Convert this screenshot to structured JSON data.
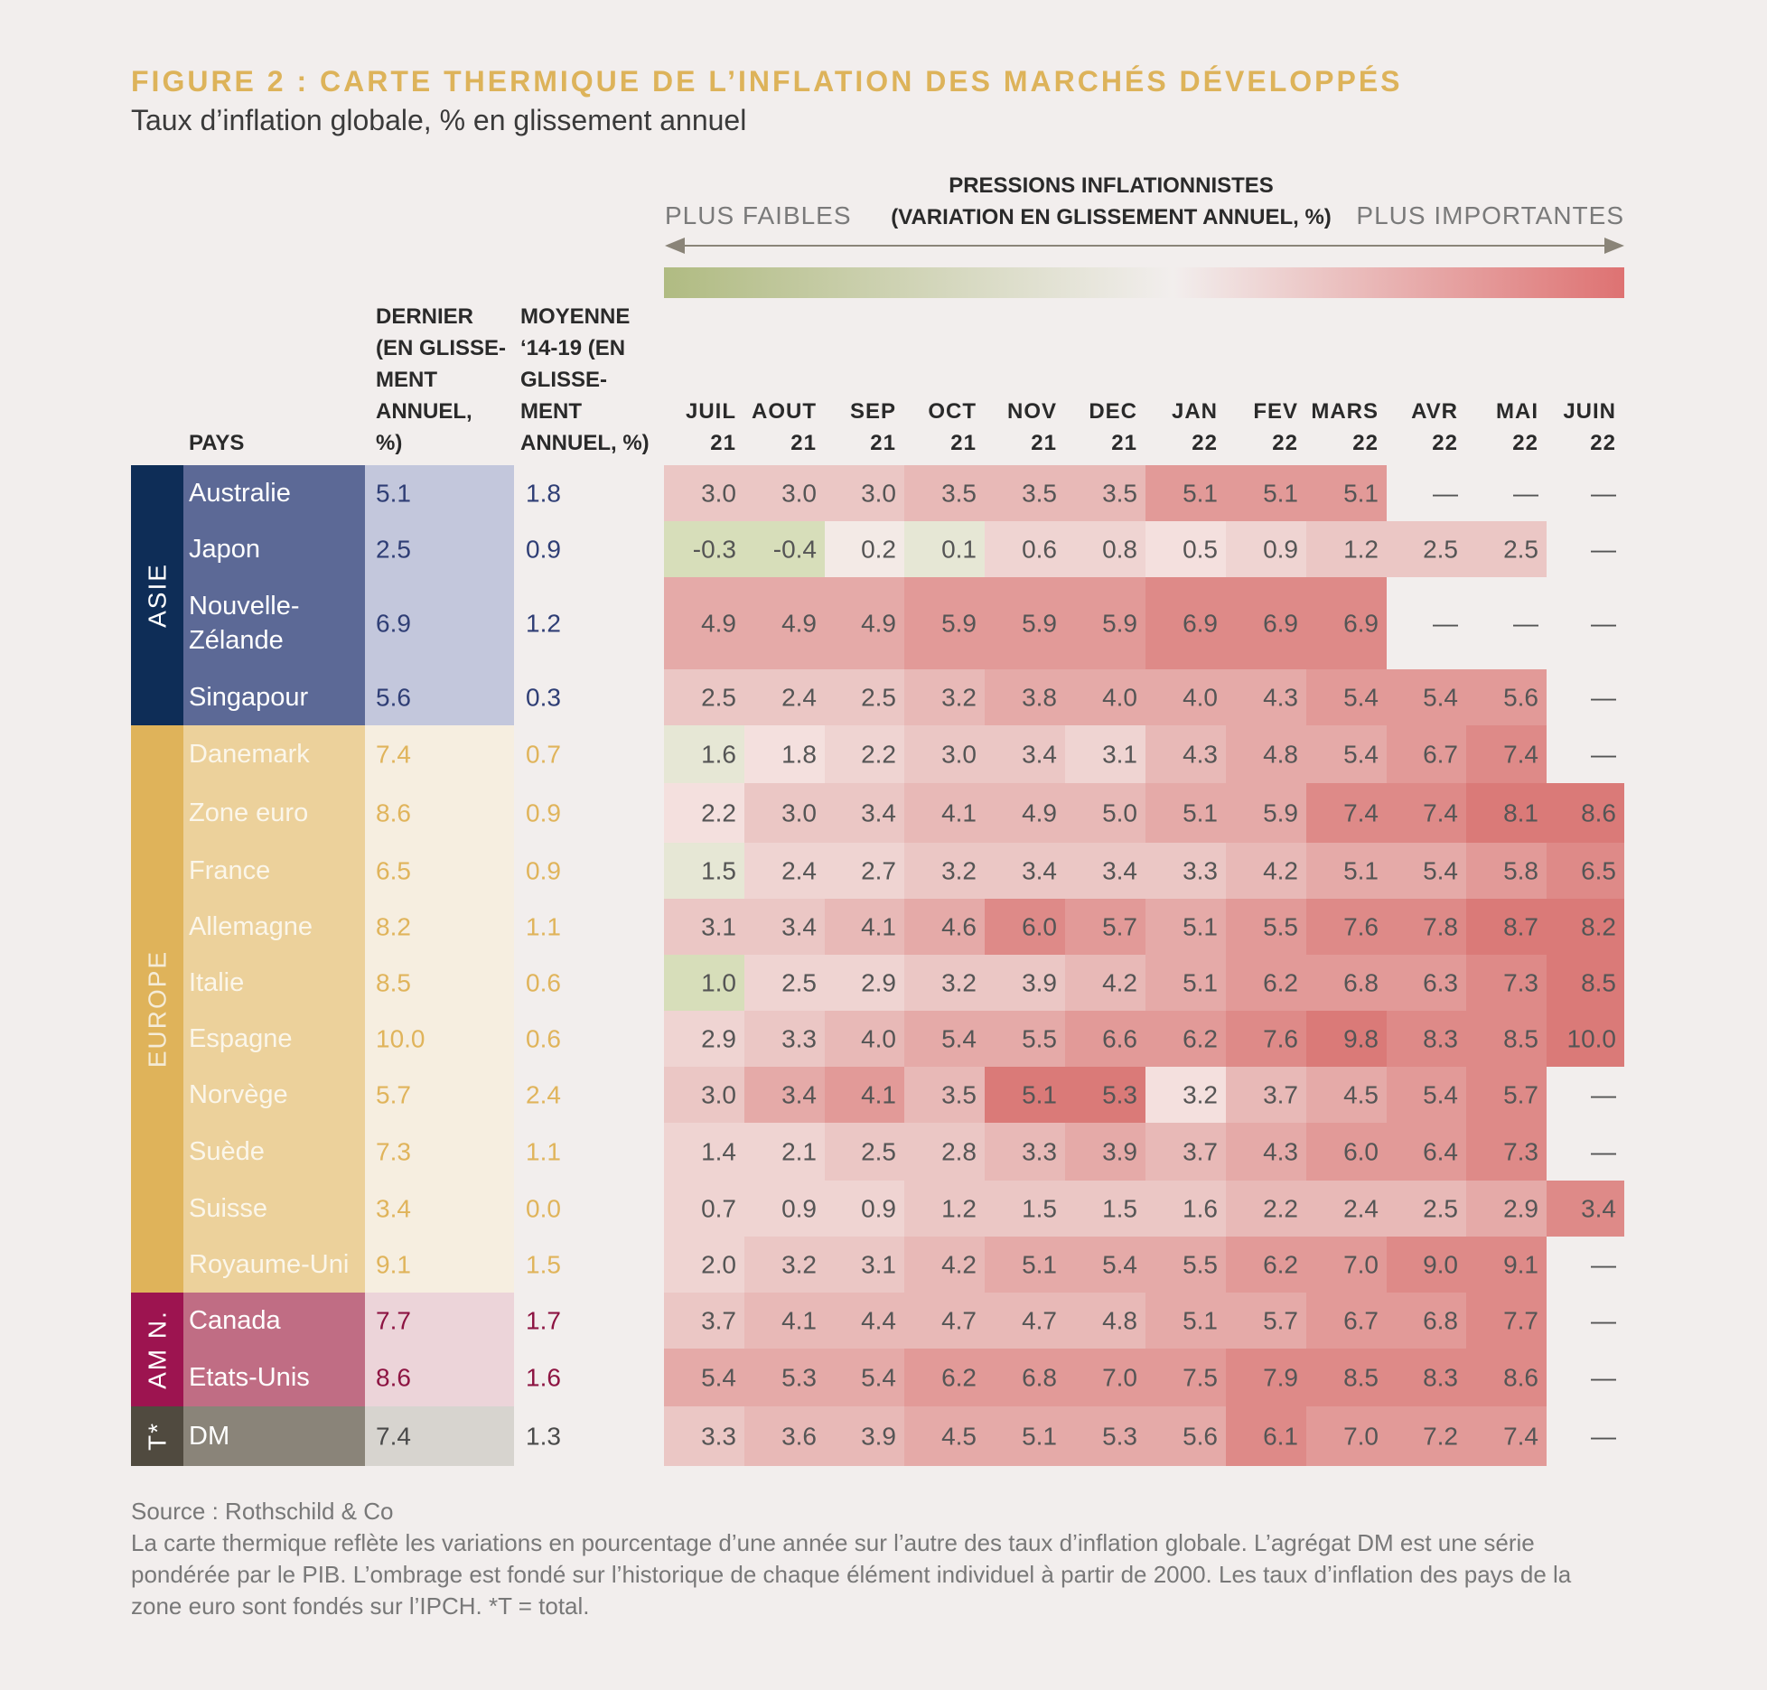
{
  "header": {
    "title": "FIGURE 2 : CARTE THERMIQUE DE L’INFLATION DES MARCHÉS DÉVELOPPÉS",
    "subtitle": "Taux d’inflation globale, % en glissement annuel"
  },
  "legend": {
    "heading_line1": "PRESSIONS INFLATIONNISTES",
    "heading_line2": "(VARIATION EN GLISSEMENT ANNUEL, %)",
    "low_label": "PLUS FAIBLES",
    "high_label": "PLUS IMPORTANTES",
    "gradient_colors": [
      "#b0bb82",
      "#f2eeed",
      "#de7272"
    ]
  },
  "chart_data": {
    "type": "heatmap",
    "column_headers": {
      "country": "PAYS",
      "latest": [
        "DERNIER",
        "(EN GLISSE-",
        "MENT",
        "ANNUEL,",
        "%)"
      ],
      "average": [
        "MOYENNE",
        "‘14-19 (EN",
        "GLISSE-",
        "MENT",
        "ANNUEL, %)"
      ]
    },
    "months": [
      [
        "JUIL",
        "21"
      ],
      [
        "AOUT",
        "21"
      ],
      [
        "SEP",
        "21"
      ],
      [
        "OCT",
        "21"
      ],
      [
        "NOV",
        "21"
      ],
      [
        "DEC",
        "21"
      ],
      [
        "JAN",
        "22"
      ],
      [
        "FEV",
        "22"
      ],
      [
        "MARS",
        "22"
      ],
      [
        "AVR",
        "22"
      ],
      [
        "MAI",
        "22"
      ],
      [
        "JUIN",
        "22"
      ]
    ],
    "groups": [
      {
        "label": "ASIE",
        "color": "#0e2d57",
        "label_color": "#ffffff"
      },
      {
        "label": "EUROPE",
        "color": "#dfb35a",
        "label_color": "#f5ecd8"
      },
      {
        "label": "AM N.",
        "color": "#9d1450",
        "label_color": "#ffffff"
      },
      {
        "label": "T*",
        "color": "#504a3f",
        "label_color": "#ffffff"
      }
    ],
    "group_styles": [
      {
        "name_bg": "#5c6996",
        "name_fg": "#ffffff",
        "val_bg": "#c3c7dc",
        "val_fg": "#2f3e75"
      },
      {
        "name_bg": "#ecd19b",
        "name_fg": "#fbf6ea",
        "val_bg": "#f6eee0",
        "val_fg": "#e0b45b"
      },
      {
        "name_bg": "#c06d84",
        "name_fg": "#ffffff",
        "val_bg": "#ecd4d9",
        "val_fg": "#8d1442"
      },
      {
        "name_bg": "#8a8479",
        "name_fg": "#ffffff",
        "val_bg": "#d7d4cf",
        "val_fg": "#4a4a4a"
      }
    ],
    "dash": "—",
    "rows": [
      {
        "group": 0,
        "name": [
          "Australie"
        ],
        "latest": "5.1",
        "avg": "1.8",
        "values": [
          "3.0",
          "3.0",
          "3.0",
          "3.5",
          "3.5",
          "3.5",
          "5.1",
          "5.1",
          "5.1",
          "—",
          "—",
          "—"
        ]
      },
      {
        "group": 0,
        "name": [
          "Japon"
        ],
        "latest": "2.5",
        "avg": "0.9",
        "values": [
          "-0.3",
          "-0.4",
          "0.2",
          "0.1",
          "0.6",
          "0.8",
          "0.5",
          "0.9",
          "1.2",
          "2.5",
          "2.5",
          "—"
        ]
      },
      {
        "group": 0,
        "name": [
          "Nouvelle-",
          "Zélande"
        ],
        "latest": "6.9",
        "avg": "1.2",
        "values": [
          "4.9",
          "4.9",
          "4.9",
          "5.9",
          "5.9",
          "5.9",
          "6.9",
          "6.9",
          "6.9",
          "—",
          "—",
          "—"
        ]
      },
      {
        "group": 0,
        "name": [
          "Singapour"
        ],
        "latest": "5.6",
        "avg": "0.3",
        "values": [
          "2.5",
          "2.4",
          "2.5",
          "3.2",
          "3.8",
          "4.0",
          "4.0",
          "4.3",
          "5.4",
          "5.4",
          "5.6",
          "—"
        ]
      },
      {
        "group": 1,
        "name": [
          "Danemark"
        ],
        "latest": "7.4",
        "avg": "0.7",
        "values": [
          "1.6",
          "1.8",
          "2.2",
          "3.0",
          "3.4",
          "3.1",
          "4.3",
          "4.8",
          "5.4",
          "6.7",
          "7.4",
          "—"
        ]
      },
      {
        "group": 1,
        "name": [
          "Zone euro"
        ],
        "latest": "8.6",
        "avg": "0.9",
        "values": [
          "2.2",
          "3.0",
          "3.4",
          "4.1",
          "4.9",
          "5.0",
          "5.1",
          "5.9",
          "7.4",
          "7.4",
          "8.1",
          "8.6"
        ]
      },
      {
        "group": 1,
        "name": [
          "France"
        ],
        "latest": "6.5",
        "avg": "0.9",
        "values": [
          "1.5",
          "2.4",
          "2.7",
          "3.2",
          "3.4",
          "3.4",
          "3.3",
          "4.2",
          "5.1",
          "5.4",
          "5.8",
          "6.5"
        ]
      },
      {
        "group": 1,
        "name": [
          "Allemagne"
        ],
        "latest": "8.2",
        "avg": "1.1",
        "values": [
          "3.1",
          "3.4",
          "4.1",
          "4.6",
          "6.0",
          "5.7",
          "5.1",
          "5.5",
          "7.6",
          "7.8",
          "8.7",
          "8.2"
        ]
      },
      {
        "group": 1,
        "name": [
          "Italie"
        ],
        "latest": "8.5",
        "avg": "0.6",
        "values": [
          "1.0",
          "2.5",
          "2.9",
          "3.2",
          "3.9",
          "4.2",
          "5.1",
          "6.2",
          "6.8",
          "6.3",
          "7.3",
          "8.5"
        ]
      },
      {
        "group": 1,
        "name": [
          "Espagne"
        ],
        "latest": "10.0",
        "avg": "0.6",
        "values": [
          "2.9",
          "3.3",
          "4.0",
          "5.4",
          "5.5",
          "6.6",
          "6.2",
          "7.6",
          "9.8",
          "8.3",
          "8.5",
          "10.0"
        ]
      },
      {
        "group": 1,
        "name": [
          "Norvège"
        ],
        "latest": "5.7",
        "avg": "2.4",
        "values": [
          "3.0",
          "3.4",
          "4.1",
          "3.5",
          "5.1",
          "5.3",
          "3.2",
          "3.7",
          "4.5",
          "5.4",
          "5.7",
          "—"
        ]
      },
      {
        "group": 1,
        "name": [
          "Suède"
        ],
        "latest": "7.3",
        "avg": "1.1",
        "values": [
          "1.4",
          "2.1",
          "2.5",
          "2.8",
          "3.3",
          "3.9",
          "3.7",
          "4.3",
          "6.0",
          "6.4",
          "7.3",
          "—"
        ]
      },
      {
        "group": 1,
        "name": [
          "Suisse"
        ],
        "latest": "3.4",
        "avg": "0.0",
        "values": [
          "0.7",
          "0.9",
          "0.9",
          "1.2",
          "1.5",
          "1.5",
          "1.6",
          "2.2",
          "2.4",
          "2.5",
          "2.9",
          "3.4"
        ]
      },
      {
        "group": 1,
        "name": [
          "Royaume-Uni"
        ],
        "latest": "9.1",
        "avg": "1.5",
        "values": [
          "2.0",
          "3.2",
          "3.1",
          "4.2",
          "5.1",
          "5.4",
          "5.5",
          "6.2",
          "7.0",
          "9.0",
          "9.1",
          "—"
        ]
      },
      {
        "group": 2,
        "name": [
          "Canada"
        ],
        "latest": "7.7",
        "avg": "1.7",
        "values": [
          "3.7",
          "4.1",
          "4.4",
          "4.7",
          "4.7",
          "4.8",
          "5.1",
          "5.7",
          "6.7",
          "6.8",
          "7.7",
          "—"
        ]
      },
      {
        "group": 2,
        "name": [
          "Etats-Unis"
        ],
        "latest": "8.6",
        "avg": "1.6",
        "values": [
          "5.4",
          "5.3",
          "5.4",
          "6.2",
          "6.8",
          "7.0",
          "7.5",
          "7.9",
          "8.5",
          "8.3",
          "8.6",
          "—"
        ]
      },
      {
        "group": 3,
        "name": [
          "DM"
        ],
        "latest": "7.4",
        "avg": "1.3",
        "values": [
          "3.3",
          "3.6",
          "3.9",
          "4.5",
          "5.1",
          "5.3",
          "5.6",
          "6.1",
          "7.0",
          "7.2",
          "7.4",
          "—"
        ]
      }
    ],
    "heat_levels": [
      [
        3,
        3,
        3,
        4,
        4,
        4,
        6,
        6,
        6,
        null,
        null,
        null
      ],
      [
        -2,
        -2,
        0,
        -1,
        2,
        2,
        1,
        2,
        3,
        3,
        3,
        null
      ],
      [
        5,
        5,
        5,
        6,
        6,
        6,
        7,
        7,
        7,
        null,
        null,
        null
      ],
      [
        3,
        3,
        3,
        4,
        5,
        5,
        5,
        5,
        6,
        6,
        6,
        null
      ],
      [
        -1,
        1,
        2,
        3,
        3,
        2,
        4,
        5,
        5,
        6,
        7,
        null
      ],
      [
        1,
        3,
        3,
        4,
        4,
        4,
        5,
        5,
        7,
        7,
        8,
        8
      ],
      [
        -1,
        2,
        2,
        3,
        3,
        3,
        3,
        4,
        5,
        5,
        6,
        7
      ],
      [
        3,
        3,
        4,
        5,
        7,
        6,
        5,
        6,
        7,
        7,
        8,
        8
      ],
      [
        -2,
        2,
        2,
        3,
        3,
        4,
        5,
        6,
        6,
        6,
        7,
        8
      ],
      [
        2,
        3,
        4,
        5,
        5,
        6,
        6,
        7,
        8,
        7,
        7,
        8
      ],
      [
        3,
        5,
        6,
        4,
        8,
        8,
        1,
        4,
        5,
        6,
        7,
        null
      ],
      [
        2,
        2,
        3,
        3,
        4,
        5,
        4,
        5,
        6,
        6,
        7,
        null
      ],
      [
        2,
        2,
        2,
        3,
        3,
        3,
        3,
        4,
        4,
        4,
        5,
        7
      ],
      [
        2,
        3,
        3,
        4,
        5,
        5,
        5,
        6,
        6,
        7,
        7,
        null
      ],
      [
        3,
        4,
        4,
        4,
        4,
        4,
        5,
        5,
        6,
        6,
        7,
        null
      ],
      [
        5,
        5,
        5,
        6,
        6,
        6,
        6,
        7,
        7,
        7,
        7,
        null
      ],
      [
        3,
        4,
        4,
        5,
        5,
        5,
        5,
        7,
        6,
        6,
        6,
        null
      ]
    ]
  },
  "notes": {
    "source": "Source : Rothschild & Co",
    "line1": "La carte thermique reflète les variations en pourcentage d’une année sur l’autre des taux d’inflation globale. L’agrégat DM est une série",
    "line2": "pondérée par le PIB. L’ombrage est fondé sur l’historique de chaque élément individuel à partir de 2000. Les taux d’inflation des pays de la",
    "line3": "zone euro sont fondés sur l’IPCH. *T = total."
  }
}
